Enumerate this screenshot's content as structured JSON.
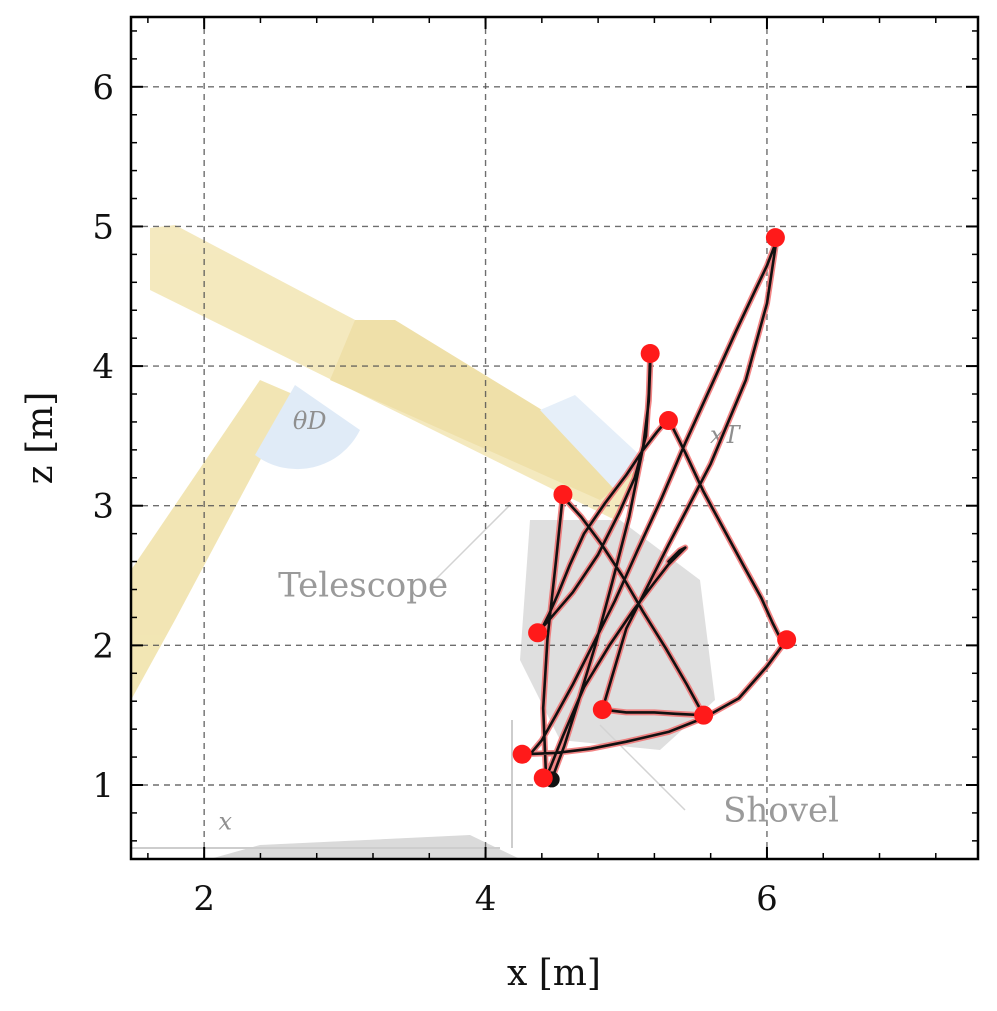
{
  "chart_data": {
    "type": "line",
    "title": "",
    "xlabel": "x [m]",
    "ylabel": "z [m]",
    "xlim": [
      1.48,
      7.5
    ],
    "ylim": [
      0.47,
      6.5
    ],
    "xticks": [
      2,
      4,
      6
    ],
    "yticks": [
      1,
      2,
      3,
      4,
      5,
      6
    ],
    "xtick_labels": [
      "2",
      "4",
      "6"
    ],
    "ytick_labels": [
      "1",
      "2",
      "3",
      "4",
      "5",
      "6"
    ],
    "grid": true,
    "grid_style": "dashed",
    "background_image": "excavator with telescope boom and shovel (faded)",
    "annotations": [
      {
        "text": "Telescope",
        "x": 3.13,
        "y": 2.35
      },
      {
        "text": "Shovel",
        "x": 6.1,
        "y": 0.74
      },
      {
        "text": "θD",
        "x": 2.75,
        "y": 3.55
      },
      {
        "text": "xT",
        "x": 5.7,
        "y": 3.45
      },
      {
        "text": "x",
        "x": 2.15,
        "y": 0.68
      }
    ],
    "waypoints": [
      {
        "x": 4.55,
        "y": 3.08
      },
      {
        "x": 5.17,
        "y": 4.09
      },
      {
        "x": 5.3,
        "y": 3.61
      },
      {
        "x": 6.06,
        "y": 4.92
      },
      {
        "x": 4.37,
        "y": 2.09
      },
      {
        "x": 6.14,
        "y": 2.04
      },
      {
        "x": 4.83,
        "y": 1.54
      },
      {
        "x": 5.55,
        "y": 1.5
      },
      {
        "x": 4.26,
        "y": 1.22
      },
      {
        "x": 4.41,
        "y": 1.05
      }
    ],
    "start_point": {
      "x": 4.47,
      "y": 1.04
    },
    "series": [
      {
        "x": [
          4.47,
          4.56,
          4.66,
          4.78,
          4.9,
          5.02,
          5.12,
          5.16,
          5.17,
          5.17,
          5.16,
          5.14,
          5.06,
          4.95,
          4.8,
          4.62,
          4.45,
          4.37,
          4.41,
          4.45,
          4.52,
          4.6,
          4.7,
          4.85,
          5.0,
          5.12,
          5.22,
          5.28,
          5.3,
          5.33,
          5.42,
          5.55,
          5.7,
          5.84,
          5.96,
          6.04,
          6.08,
          6.1,
          6.12,
          6.14,
          6.0,
          5.8,
          5.55,
          5.3,
          5.0,
          4.75,
          4.5,
          4.26,
          4.3,
          4.4,
          4.5,
          4.62,
          4.76,
          4.92,
          5.08,
          5.25,
          5.42,
          5.6,
          5.78,
          5.92,
          6.0,
          6.05,
          6.06,
          6.06,
          6.0,
          5.85,
          5.6,
          5.3,
          5.0,
          4.83,
          5.0,
          5.2,
          5.35,
          5.55,
          5.43,
          5.28,
          5.12,
          4.97,
          4.82,
          4.68,
          4.58,
          4.55,
          4.5,
          4.44,
          4.41,
          4.43,
          4.55,
          4.7,
          4.88,
          5.05,
          5.2,
          5.3,
          5.37,
          5.42,
          5.38,
          5.3
        ],
        "y": [
          1.04,
          1.28,
          1.6,
          2.0,
          2.45,
          2.92,
          3.42,
          3.75,
          4.0,
          4.09,
          3.8,
          3.5,
          3.2,
          2.95,
          2.65,
          2.38,
          2.18,
          2.09,
          2.14,
          2.22,
          2.38,
          2.58,
          2.8,
          3.02,
          3.22,
          3.4,
          3.53,
          3.6,
          3.61,
          3.56,
          3.38,
          3.1,
          2.82,
          2.56,
          2.34,
          2.16,
          2.08,
          2.05,
          2.04,
          2.04,
          1.85,
          1.62,
          1.48,
          1.38,
          1.31,
          1.26,
          1.23,
          1.22,
          1.2,
          1.32,
          1.5,
          1.72,
          2.0,
          2.32,
          2.68,
          3.05,
          3.45,
          3.85,
          4.25,
          4.55,
          4.72,
          4.85,
          4.92,
          4.85,
          4.45,
          3.9,
          3.3,
          2.72,
          2.12,
          1.54,
          1.52,
          1.52,
          1.51,
          1.5,
          1.72,
          1.98,
          2.24,
          2.5,
          2.73,
          2.92,
          3.03,
          3.08,
          2.6,
          2.05,
          1.55,
          1.05,
          1.35,
          1.7,
          2.0,
          2.25,
          2.45,
          2.58,
          2.65,
          2.7,
          2.68,
          2.6
        ]
      }
    ]
  }
}
